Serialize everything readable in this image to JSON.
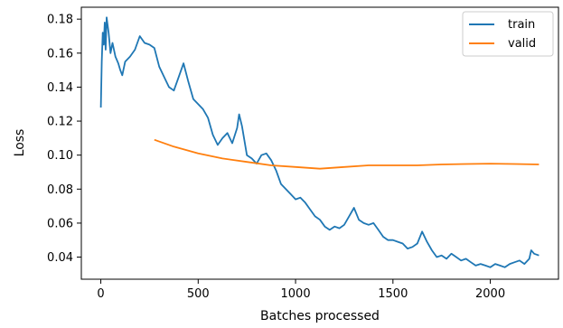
{
  "chart_data": {
    "type": "line",
    "xlabel": "Batches processed",
    "ylabel": "Loss",
    "xlim": [
      -100,
      2350
    ],
    "ylim": [
      0.027,
      0.187
    ],
    "xticks": [
      0,
      500,
      1000,
      1500,
      2000
    ],
    "yticks": [
      0.04,
      0.06,
      0.08,
      0.1,
      0.12,
      0.14,
      0.16,
      0.18
    ],
    "xtick_labels": [
      "0",
      "500",
      "1000",
      "1500",
      "2000"
    ],
    "ytick_labels": [
      "0.04",
      "0.06",
      "0.08",
      "0.10",
      "0.12",
      "0.14",
      "0.16",
      "0.18"
    ],
    "grid": false,
    "legend_position": "top-right",
    "series": [
      {
        "name": "train",
        "color": "#1f77b4",
        "x": [
          0,
          5,
          10,
          15,
          20,
          25,
          30,
          40,
          50,
          60,
          75,
          90,
          100,
          110,
          125,
          150,
          175,
          200,
          225,
          250,
          275,
          300,
          325,
          350,
          375,
          400,
          425,
          450,
          475,
          500,
          525,
          550,
          575,
          600,
          625,
          650,
          675,
          700,
          710,
          725,
          750,
          775,
          800,
          825,
          850,
          875,
          900,
          925,
          950,
          975,
          1000,
          1025,
          1050,
          1075,
          1100,
          1125,
          1150,
          1175,
          1200,
          1225,
          1250,
          1275,
          1300,
          1325,
          1350,
          1375,
          1400,
          1425,
          1450,
          1475,
          1500,
          1525,
          1550,
          1575,
          1600,
          1625,
          1650,
          1675,
          1700,
          1725,
          1750,
          1775,
          1800,
          1825,
          1850,
          1875,
          1900,
          1925,
          1950,
          1975,
          2000,
          2025,
          2050,
          2075,
          2100,
          2125,
          2150,
          2175,
          2200,
          2210,
          2225,
          2250
        ],
        "y": [
          0.128,
          0.155,
          0.172,
          0.165,
          0.178,
          0.162,
          0.181,
          0.172,
          0.16,
          0.166,
          0.158,
          0.154,
          0.15,
          0.147,
          0.155,
          0.158,
          0.162,
          0.17,
          0.166,
          0.165,
          0.163,
          0.152,
          0.146,
          0.14,
          0.138,
          0.146,
          0.154,
          0.143,
          0.133,
          0.13,
          0.127,
          0.122,
          0.112,
          0.106,
          0.11,
          0.113,
          0.107,
          0.116,
          0.124,
          0.117,
          0.1,
          0.098,
          0.095,
          0.1,
          0.101,
          0.097,
          0.091,
          0.083,
          0.08,
          0.077,
          0.074,
          0.075,
          0.072,
          0.068,
          0.064,
          0.062,
          0.058,
          0.056,
          0.058,
          0.057,
          0.059,
          0.064,
          0.069,
          0.062,
          0.06,
          0.059,
          0.06,
          0.056,
          0.052,
          0.05,
          0.05,
          0.049,
          0.048,
          0.045,
          0.046,
          0.048,
          0.055,
          0.049,
          0.044,
          0.04,
          0.041,
          0.039,
          0.042,
          0.04,
          0.038,
          0.039,
          0.037,
          0.035,
          0.036,
          0.035,
          0.034,
          0.036,
          0.035,
          0.034,
          0.036,
          0.037,
          0.038,
          0.036,
          0.039,
          0.044,
          0.042,
          0.041
        ]
      },
      {
        "name": "valid",
        "color": "#ff7f0e",
        "x": [
          275,
          375,
          500,
          625,
          750,
          875,
          1000,
          1125,
          1250,
          1375,
          1500,
          1625,
          1750,
          1875,
          2000,
          2125,
          2250
        ],
        "y": [
          0.109,
          0.105,
          0.101,
          0.098,
          0.096,
          0.094,
          0.093,
          0.092,
          0.093,
          0.094,
          0.094,
          0.094,
          0.0945,
          0.0948,
          0.095,
          0.0948,
          0.0945
        ]
      }
    ]
  }
}
